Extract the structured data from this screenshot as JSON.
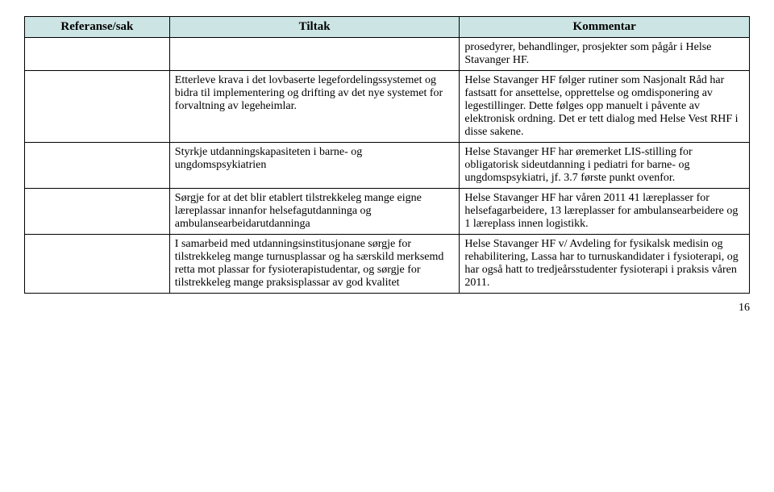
{
  "headers": {
    "col1": "Referanse/sak",
    "col2": "Tiltak",
    "col3": "Kommentar"
  },
  "rows": [
    {
      "ref": "",
      "tiltak": "",
      "kommentar": "prosedyrer, behandlinger, prosjekter som pågår i Helse Stavanger HF."
    },
    {
      "ref": "",
      "tiltak": "Etterleve krava i det lovbaserte legefordelingssystemet og bidra til implementering og drifting av det nye systemet for forvaltning av legeheimlar.",
      "kommentar": "Helse Stavanger HF  følger rutiner som Nasjonalt Råd har fastsatt for ansettelse, opprettelse og omdisponering av legestillinger. Dette følges opp manuelt i påvente av elektronisk ordning.\nDet er tett dialog med Helse Vest RHF i disse sakene."
    },
    {
      "ref": "",
      "tiltak": "Styrkje utdanningskapasiteten i barne- og ungdomspsykiatrien",
      "kommentar": "Helse Stavanger HF har øremerket LIS-stilling for obligatorisk sideutdanning i pediatri for barne- og ungdomspsykiatri, jf. 3.7 første punkt ovenfor."
    },
    {
      "ref": "",
      "tiltak": "Sørgje for at det blir etablert tilstrekkeleg mange eigne læreplassar innanfor helsefagutdanninga og ambulansearbeidarutdanninga",
      "kommentar": "Helse Stavanger HF har våren 2011 41 læreplasser for helsefagarbeidere, 13 læreplasser for ambulansearbeidere og 1 læreplass innen logistikk."
    },
    {
      "ref": "",
      "tiltak": "I samarbeid med utdanningsinstitusjonane sørgje for tilstrekkeleg mange turnusplassar og ha særskild merksemd retta mot plassar for fysioterapistudentar, og sørgje for tilstrekkeleg mange praksisplassar av god kvalitet",
      "kommentar": "Helse Stavanger HF v/ Avdeling for fysikalsk medisin og rehabilitering, Lassa har to turnuskandidater i fysioterapi, og har også hatt to tredjeårsstudenter fysioterapi i praksis våren 2011."
    }
  ],
  "pageNumber": "16"
}
